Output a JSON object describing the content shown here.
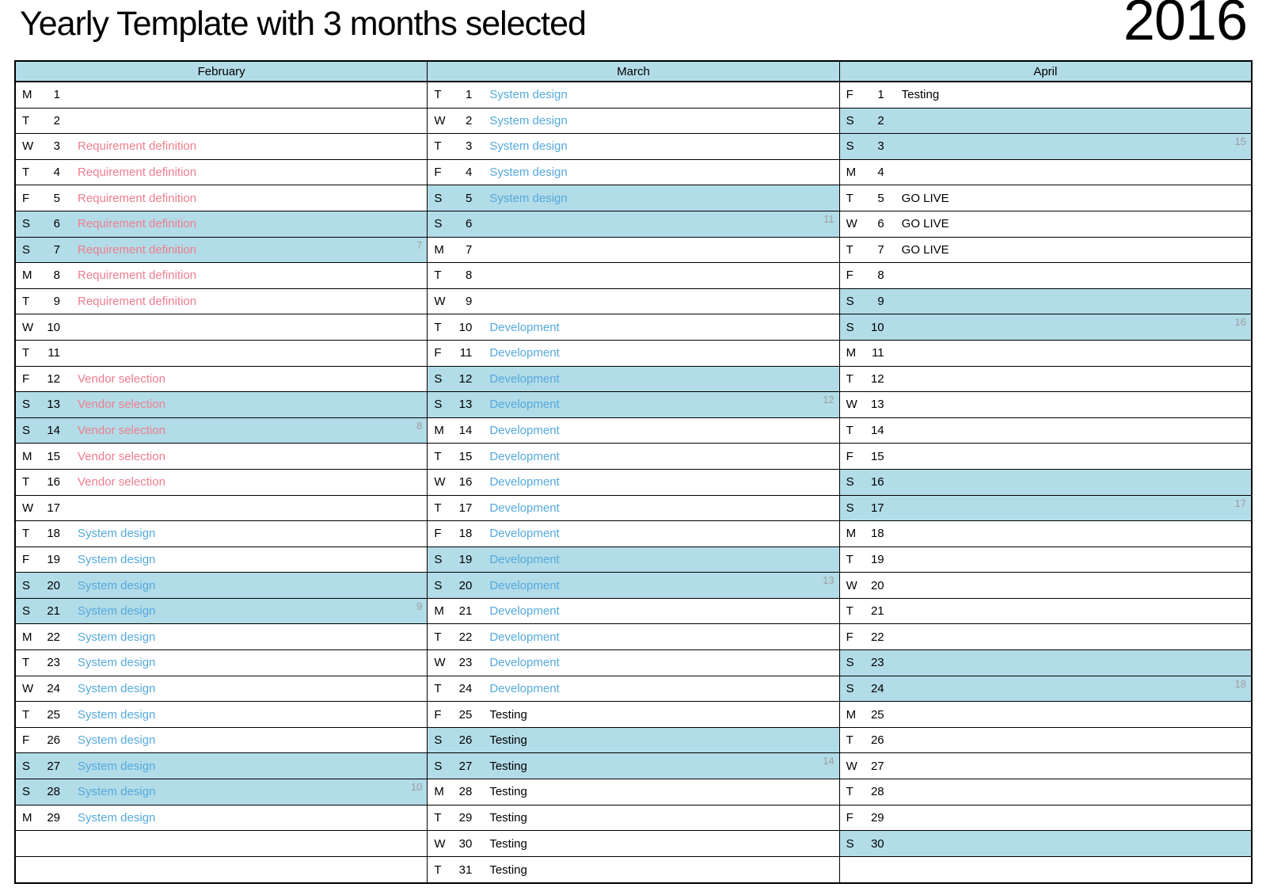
{
  "title": "Yearly Template with 3 months selected",
  "year": "2016",
  "colors": {
    "highlight_blue": "#b2dce8",
    "event_pink": "#ee7d8e",
    "event_blue": "#55a9dc",
    "event_black": "#000000",
    "week_number_gray": "#9e9e9e"
  },
  "months": [
    {
      "name": "February",
      "trailing_empty_rows": 2,
      "days": [
        {
          "dow": "M",
          "num": 1,
          "event": "",
          "color": "",
          "weekend": false,
          "week": ""
        },
        {
          "dow": "T",
          "num": 2,
          "event": "",
          "color": "",
          "weekend": false,
          "week": ""
        },
        {
          "dow": "W",
          "num": 3,
          "event": "Requirement definition",
          "color": "pink",
          "weekend": false,
          "week": ""
        },
        {
          "dow": "T",
          "num": 4,
          "event": "Requirement definition",
          "color": "pink",
          "weekend": false,
          "week": ""
        },
        {
          "dow": "F",
          "num": 5,
          "event": "Requirement definition",
          "color": "pink",
          "weekend": false,
          "week": ""
        },
        {
          "dow": "S",
          "num": 6,
          "event": "Requirement definition",
          "color": "pink",
          "weekend": true,
          "week": ""
        },
        {
          "dow": "S",
          "num": 7,
          "event": "Requirement definition",
          "color": "pink",
          "weekend": true,
          "week": "7"
        },
        {
          "dow": "M",
          "num": 8,
          "event": "Requirement definition",
          "color": "pink",
          "weekend": false,
          "week": ""
        },
        {
          "dow": "T",
          "num": 9,
          "event": "Requirement definition",
          "color": "pink",
          "weekend": false,
          "week": ""
        },
        {
          "dow": "W",
          "num": 10,
          "event": "",
          "color": "",
          "weekend": false,
          "week": ""
        },
        {
          "dow": "T",
          "num": 11,
          "event": "",
          "color": "",
          "weekend": false,
          "week": ""
        },
        {
          "dow": "F",
          "num": 12,
          "event": "Vendor selection",
          "color": "pink",
          "weekend": false,
          "week": ""
        },
        {
          "dow": "S",
          "num": 13,
          "event": "Vendor selection",
          "color": "pink",
          "weekend": true,
          "week": ""
        },
        {
          "dow": "S",
          "num": 14,
          "event": "Vendor selection",
          "color": "pink",
          "weekend": true,
          "week": "8"
        },
        {
          "dow": "M",
          "num": 15,
          "event": "Vendor selection",
          "color": "pink",
          "weekend": false,
          "week": ""
        },
        {
          "dow": "T",
          "num": 16,
          "event": "Vendor selection",
          "color": "pink",
          "weekend": false,
          "week": ""
        },
        {
          "dow": "W",
          "num": 17,
          "event": "",
          "color": "",
          "weekend": false,
          "week": ""
        },
        {
          "dow": "T",
          "num": 18,
          "event": "System design",
          "color": "blue",
          "weekend": false,
          "week": ""
        },
        {
          "dow": "F",
          "num": 19,
          "event": "System design",
          "color": "blue",
          "weekend": false,
          "week": ""
        },
        {
          "dow": "S",
          "num": 20,
          "event": "System design",
          "color": "blue",
          "weekend": true,
          "week": ""
        },
        {
          "dow": "S",
          "num": 21,
          "event": "System design",
          "color": "blue",
          "weekend": true,
          "week": "9"
        },
        {
          "dow": "M",
          "num": 22,
          "event": "System design",
          "color": "blue",
          "weekend": false,
          "week": ""
        },
        {
          "dow": "T",
          "num": 23,
          "event": "System design",
          "color": "blue",
          "weekend": false,
          "week": ""
        },
        {
          "dow": "W",
          "num": 24,
          "event": "System design",
          "color": "blue",
          "weekend": false,
          "week": ""
        },
        {
          "dow": "T",
          "num": 25,
          "event": "System design",
          "color": "blue",
          "weekend": false,
          "week": ""
        },
        {
          "dow": "F",
          "num": 26,
          "event": "System design",
          "color": "blue",
          "weekend": false,
          "week": ""
        },
        {
          "dow": "S",
          "num": 27,
          "event": "System design",
          "color": "blue",
          "weekend": true,
          "week": ""
        },
        {
          "dow": "S",
          "num": 28,
          "event": "System design",
          "color": "blue",
          "weekend": true,
          "week": "10"
        },
        {
          "dow": "M",
          "num": 29,
          "event": "System design",
          "color": "blue",
          "weekend": false,
          "week": ""
        }
      ]
    },
    {
      "name": "March",
      "trailing_empty_rows": 0,
      "days": [
        {
          "dow": "T",
          "num": 1,
          "event": "System design",
          "color": "blue",
          "weekend": false,
          "week": ""
        },
        {
          "dow": "W",
          "num": 2,
          "event": "System design",
          "color": "blue",
          "weekend": false,
          "week": ""
        },
        {
          "dow": "T",
          "num": 3,
          "event": "System design",
          "color": "blue",
          "weekend": false,
          "week": ""
        },
        {
          "dow": "F",
          "num": 4,
          "event": "System design",
          "color": "blue",
          "weekend": false,
          "week": ""
        },
        {
          "dow": "S",
          "num": 5,
          "event": "System design",
          "color": "blue",
          "weekend": true,
          "week": ""
        },
        {
          "dow": "S",
          "num": 6,
          "event": "",
          "color": "",
          "weekend": true,
          "week": "11"
        },
        {
          "dow": "M",
          "num": 7,
          "event": "",
          "color": "",
          "weekend": false,
          "week": ""
        },
        {
          "dow": "T",
          "num": 8,
          "event": "",
          "color": "",
          "weekend": false,
          "week": ""
        },
        {
          "dow": "W",
          "num": 9,
          "event": "",
          "color": "",
          "weekend": false,
          "week": ""
        },
        {
          "dow": "T",
          "num": 10,
          "event": "Development",
          "color": "blue",
          "weekend": false,
          "week": ""
        },
        {
          "dow": "F",
          "num": 11,
          "event": "Development",
          "color": "blue",
          "weekend": false,
          "week": ""
        },
        {
          "dow": "S",
          "num": 12,
          "event": "Development",
          "color": "blue",
          "weekend": true,
          "week": ""
        },
        {
          "dow": "S",
          "num": 13,
          "event": "Development",
          "color": "blue",
          "weekend": true,
          "week": "12"
        },
        {
          "dow": "M",
          "num": 14,
          "event": "Development",
          "color": "blue",
          "weekend": false,
          "week": ""
        },
        {
          "dow": "T",
          "num": 15,
          "event": "Development",
          "color": "blue",
          "weekend": false,
          "week": ""
        },
        {
          "dow": "W",
          "num": 16,
          "event": "Development",
          "color": "blue",
          "weekend": false,
          "week": ""
        },
        {
          "dow": "T",
          "num": 17,
          "event": "Development",
          "color": "blue",
          "weekend": false,
          "week": ""
        },
        {
          "dow": "F",
          "num": 18,
          "event": "Development",
          "color": "blue",
          "weekend": false,
          "week": ""
        },
        {
          "dow": "S",
          "num": 19,
          "event": "Development",
          "color": "blue",
          "weekend": true,
          "week": ""
        },
        {
          "dow": "S",
          "num": 20,
          "event": "Development",
          "color": "blue",
          "weekend": true,
          "week": "13"
        },
        {
          "dow": "M",
          "num": 21,
          "event": "Development",
          "color": "blue",
          "weekend": false,
          "week": ""
        },
        {
          "dow": "T",
          "num": 22,
          "event": "Development",
          "color": "blue",
          "weekend": false,
          "week": ""
        },
        {
          "dow": "W",
          "num": 23,
          "event": "Development",
          "color": "blue",
          "weekend": false,
          "week": ""
        },
        {
          "dow": "T",
          "num": 24,
          "event": "Development",
          "color": "blue",
          "weekend": false,
          "week": ""
        },
        {
          "dow": "F",
          "num": 25,
          "event": "Testing",
          "color": "black",
          "weekend": false,
          "week": ""
        },
        {
          "dow": "S",
          "num": 26,
          "event": "Testing",
          "color": "black",
          "weekend": true,
          "week": ""
        },
        {
          "dow": "S",
          "num": 27,
          "event": "Testing",
          "color": "black",
          "weekend": true,
          "week": "14"
        },
        {
          "dow": "M",
          "num": 28,
          "event": "Testing",
          "color": "black",
          "weekend": false,
          "week": ""
        },
        {
          "dow": "T",
          "num": 29,
          "event": "Testing",
          "color": "black",
          "weekend": false,
          "week": ""
        },
        {
          "dow": "W",
          "num": 30,
          "event": "Testing",
          "color": "black",
          "weekend": false,
          "week": ""
        },
        {
          "dow": "T",
          "num": 31,
          "event": "Testing",
          "color": "black",
          "weekend": false,
          "week": ""
        }
      ]
    },
    {
      "name": "April",
      "trailing_empty_rows": 1,
      "days": [
        {
          "dow": "F",
          "num": 1,
          "event": "Testing",
          "color": "black",
          "weekend": false,
          "week": ""
        },
        {
          "dow": "S",
          "num": 2,
          "event": "",
          "color": "",
          "weekend": true,
          "week": ""
        },
        {
          "dow": "S",
          "num": 3,
          "event": "",
          "color": "",
          "weekend": true,
          "week": "15"
        },
        {
          "dow": "M",
          "num": 4,
          "event": "",
          "color": "",
          "weekend": false,
          "week": ""
        },
        {
          "dow": "T",
          "num": 5,
          "event": "GO LIVE",
          "color": "black",
          "weekend": false,
          "week": ""
        },
        {
          "dow": "W",
          "num": 6,
          "event": "GO LIVE",
          "color": "black",
          "weekend": false,
          "week": ""
        },
        {
          "dow": "T",
          "num": 7,
          "event": "GO LIVE",
          "color": "black",
          "weekend": false,
          "week": ""
        },
        {
          "dow": "F",
          "num": 8,
          "event": "",
          "color": "",
          "weekend": false,
          "week": ""
        },
        {
          "dow": "S",
          "num": 9,
          "event": "",
          "color": "",
          "weekend": true,
          "week": ""
        },
        {
          "dow": "S",
          "num": 10,
          "event": "",
          "color": "",
          "weekend": true,
          "week": "16"
        },
        {
          "dow": "M",
          "num": 11,
          "event": "",
          "color": "",
          "weekend": false,
          "week": ""
        },
        {
          "dow": "T",
          "num": 12,
          "event": "",
          "color": "",
          "weekend": false,
          "week": ""
        },
        {
          "dow": "W",
          "num": 13,
          "event": "",
          "color": "",
          "weekend": false,
          "week": ""
        },
        {
          "dow": "T",
          "num": 14,
          "event": "",
          "color": "",
          "weekend": false,
          "week": ""
        },
        {
          "dow": "F",
          "num": 15,
          "event": "",
          "color": "",
          "weekend": false,
          "week": ""
        },
        {
          "dow": "S",
          "num": 16,
          "event": "",
          "color": "",
          "weekend": true,
          "week": ""
        },
        {
          "dow": "S",
          "num": 17,
          "event": "",
          "color": "",
          "weekend": true,
          "week": "17"
        },
        {
          "dow": "M",
          "num": 18,
          "event": "",
          "color": "",
          "weekend": false,
          "week": ""
        },
        {
          "dow": "T",
          "num": 19,
          "event": "",
          "color": "",
          "weekend": false,
          "week": ""
        },
        {
          "dow": "W",
          "num": 20,
          "event": "",
          "color": "",
          "weekend": false,
          "week": ""
        },
        {
          "dow": "T",
          "num": 21,
          "event": "",
          "color": "",
          "weekend": false,
          "week": ""
        },
        {
          "dow": "F",
          "num": 22,
          "event": "",
          "color": "",
          "weekend": false,
          "week": ""
        },
        {
          "dow": "S",
          "num": 23,
          "event": "",
          "color": "",
          "weekend": true,
          "week": ""
        },
        {
          "dow": "S",
          "num": 24,
          "event": "",
          "color": "",
          "weekend": true,
          "week": "18"
        },
        {
          "dow": "M",
          "num": 25,
          "event": "",
          "color": "",
          "weekend": false,
          "week": ""
        },
        {
          "dow": "T",
          "num": 26,
          "event": "",
          "color": "",
          "weekend": false,
          "week": ""
        },
        {
          "dow": "W",
          "num": 27,
          "event": "",
          "color": "",
          "weekend": false,
          "week": ""
        },
        {
          "dow": "T",
          "num": 28,
          "event": "",
          "color": "",
          "weekend": false,
          "week": ""
        },
        {
          "dow": "F",
          "num": 29,
          "event": "",
          "color": "",
          "weekend": false,
          "week": ""
        },
        {
          "dow": "S",
          "num": 30,
          "event": "",
          "color": "",
          "weekend": true,
          "week": ""
        }
      ]
    }
  ]
}
